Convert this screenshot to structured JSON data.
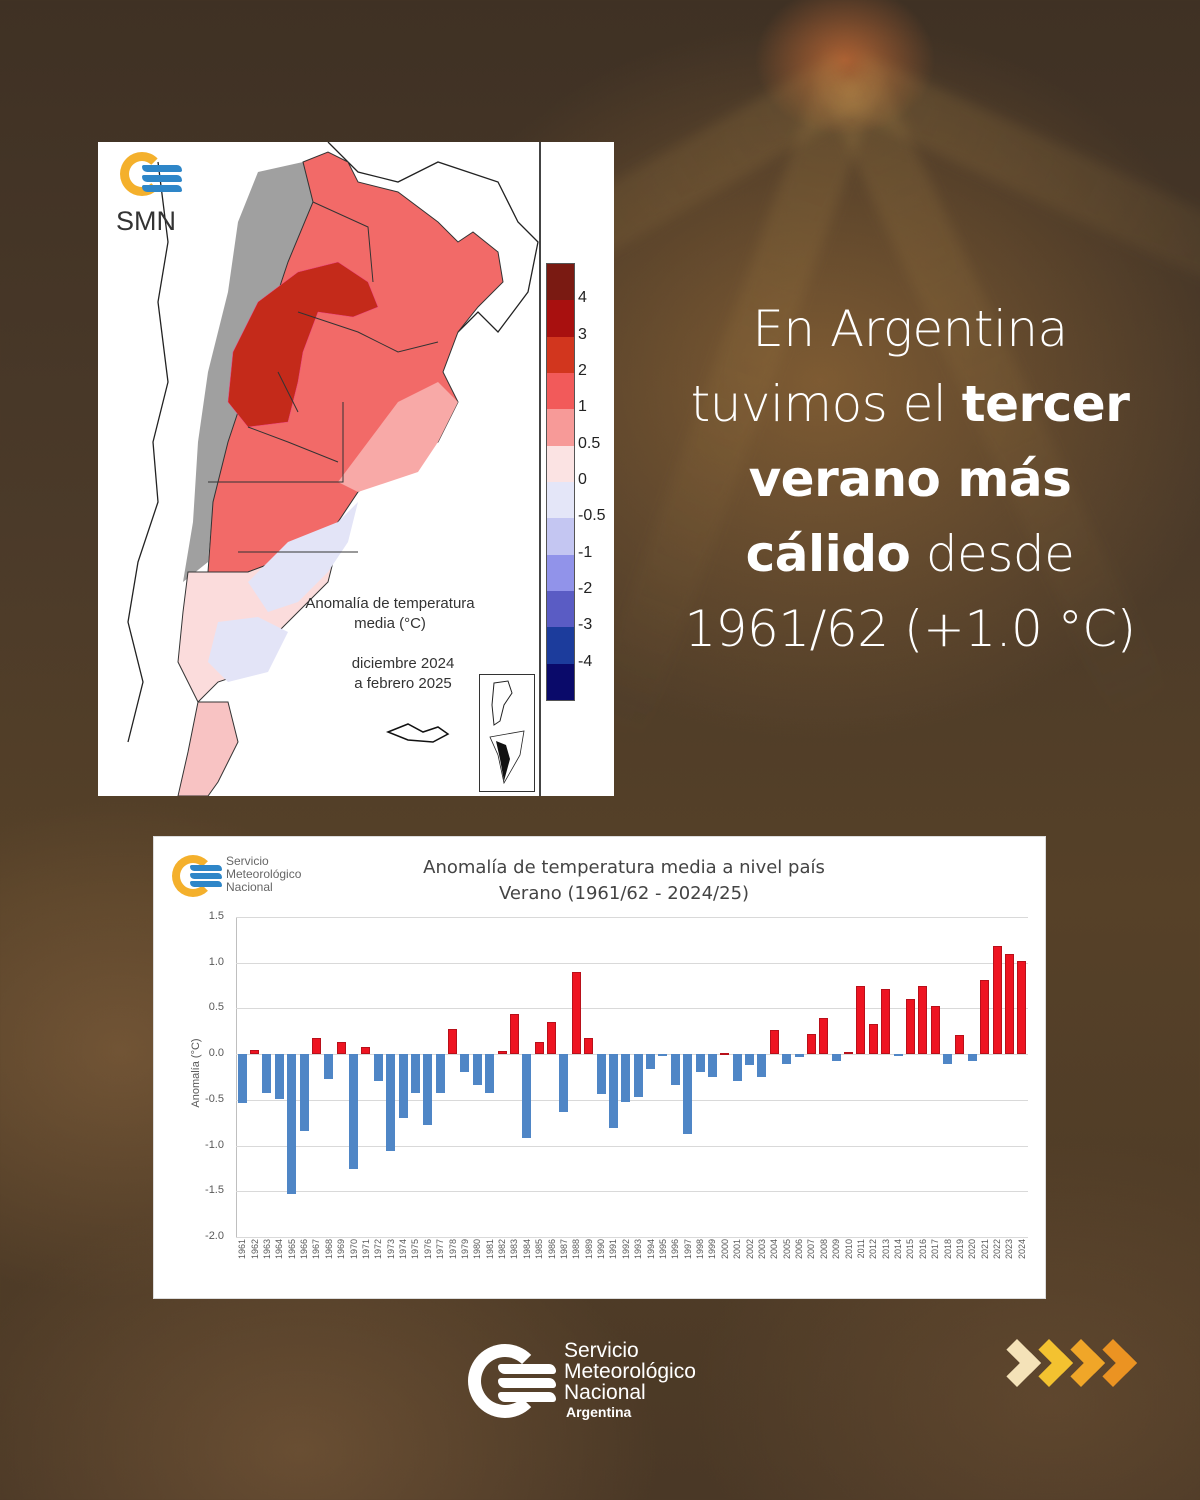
{
  "headline": {
    "line1": "En Argentina",
    "line2_light": "tuvimos el ",
    "line2_bold": "tercer",
    "line3_bold": "verano más",
    "line4_bold": "cálido",
    "line4_light": " desde",
    "line5": "1961/62 (+1.0 °C)"
  },
  "map": {
    "logo_text": "SMN",
    "title_line1": "Anomalía de temperatura",
    "title_line2": "media (°C)",
    "period_line1": "diciembre 2024",
    "period_line2": "a febrero 2025",
    "legend": {
      "labels": [
        "4",
        "3",
        "2",
        "1",
        "0.5",
        "0",
        "-0.5",
        "-1",
        "-2",
        "-3",
        "-4"
      ],
      "colors": [
        "#7a1a12",
        "#a8100f",
        "#d2361e",
        "#f25a5a",
        "#f79a98",
        "#fbe3e3",
        "#e4e6f8",
        "#c4c6f2",
        "#9193ea",
        "#5a5cc4",
        "#1c3c9c",
        "#0a0a6a"
      ]
    }
  },
  "chart_data": {
    "type": "bar",
    "title": "Anomalía de temperatura media a nivel país",
    "subtitle": "Verano (1961/62 - 2024/25)",
    "xlabel": "",
    "ylabel": "Anomalía (°C)",
    "ylim": [
      -2.0,
      1.5
    ],
    "yticks": [
      "1.5",
      "1.0",
      "0.5",
      "0.0",
      "-0.5",
      "-1.0",
      "-1.5",
      "-2.0"
    ],
    "grid": true,
    "legend": "none",
    "colors": {
      "positive": "#ee1421",
      "negative": "#4f86c6"
    },
    "categories": [
      "1961",
      "1962",
      "1963",
      "1964",
      "1965",
      "1966",
      "1967",
      "1968",
      "1969",
      "1970",
      "1971",
      "1972",
      "1973",
      "1974",
      "1975",
      "1976",
      "1977",
      "1978",
      "1979",
      "1980",
      "1981",
      "1982",
      "1983",
      "1984",
      "1985",
      "1986",
      "1987",
      "1988",
      "1989",
      "1990",
      "1991",
      "1992",
      "1993",
      "1994",
      "1995",
      "1996",
      "1997",
      "1998",
      "1999",
      "2000",
      "2001",
      "2002",
      "2003",
      "2004",
      "2005",
      "2006",
      "2007",
      "2008",
      "2009",
      "2010",
      "2011",
      "2012",
      "2013",
      "2014",
      "2015",
      "2016",
      "2017",
      "2018",
      "2019",
      "2020",
      "2021",
      "2022",
      "2023",
      "2024"
    ],
    "values": [
      -0.53,
      0.05,
      -0.42,
      -0.49,
      -1.53,
      -0.84,
      0.18,
      -0.27,
      0.13,
      -1.26,
      0.08,
      -0.29,
      -1.06,
      -0.7,
      -0.42,
      -0.78,
      -0.42,
      0.27,
      -0.2,
      -0.34,
      -0.42,
      0.03,
      0.44,
      -0.92,
      0.13,
      0.35,
      -0.63,
      0.9,
      0.18,
      -0.44,
      -0.81,
      -0.52,
      -0.47,
      -0.16,
      -0.02,
      -0.34,
      -0.87,
      -0.2,
      -0.25,
      0.01,
      -0.29,
      -0.12,
      -0.25,
      0.26,
      -0.11,
      -0.03,
      0.22,
      0.39,
      -0.07,
      0.02,
      0.75,
      0.33,
      0.71,
      -0.02,
      0.6,
      0.75,
      0.53,
      -0.11,
      0.21,
      -0.07,
      0.81,
      1.18,
      1.09,
      1.02
    ]
  },
  "chart_logo": {
    "line1": "Servicio",
    "line2": "Meteorológico",
    "line3": "Nacional"
  },
  "footer": {
    "line1": "Servicio",
    "line2": "Meteorológico",
    "line3": "Nacional",
    "line4": "Argentina",
    "chevron_colors": [
      "#f4e2b8",
      "#f3c230",
      "#f0a628",
      "#eb9322"
    ]
  }
}
